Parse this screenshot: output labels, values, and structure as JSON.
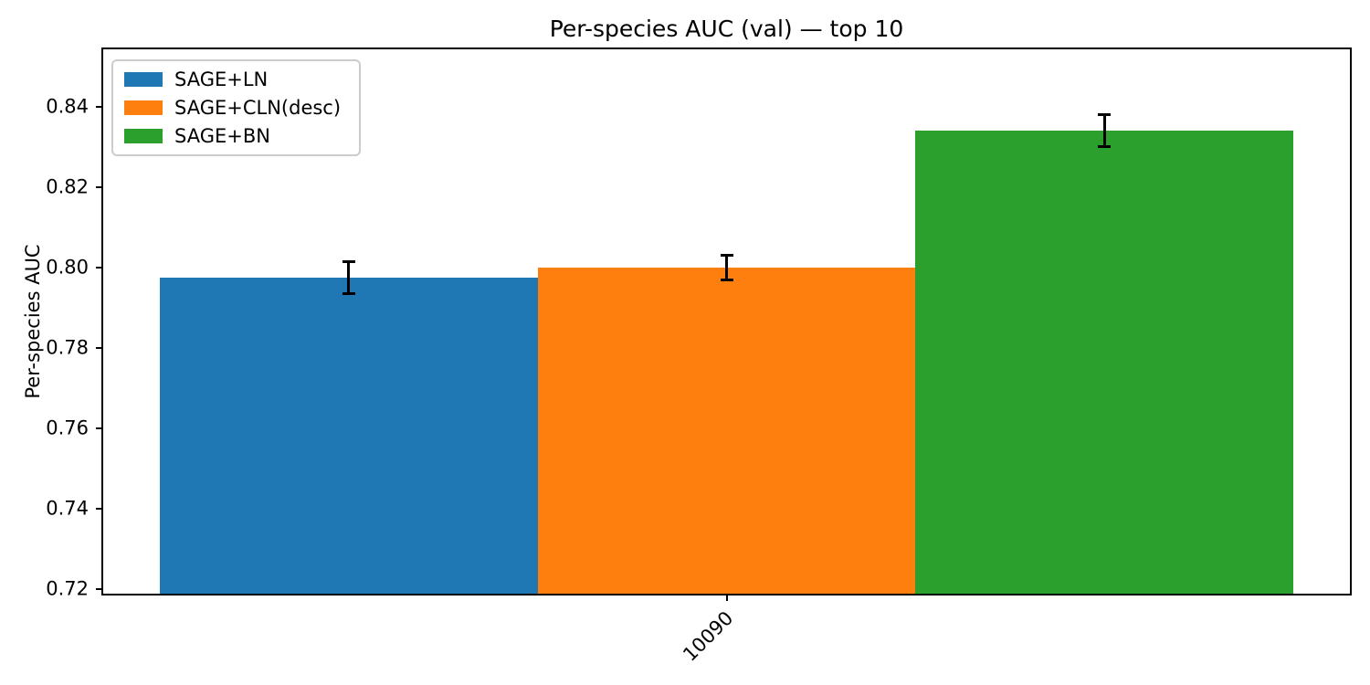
{
  "figure": {
    "background": "#ffffff",
    "spine_color": "#000000"
  },
  "chart_data": {
    "type": "bar",
    "title": "Per-species AUC (val) — top 10",
    "xlabel": "",
    "ylabel": "Per-species AUC",
    "categories": [
      "10090"
    ],
    "x_tick_rotation_deg": 45,
    "series": [
      {
        "name": "SAGE+LN",
        "color": "#1f77b4",
        "values": [
          0.7975
        ],
        "errors": [
          0.004
        ]
      },
      {
        "name": "SAGE+CLN(desc)",
        "color": "#ff7f0e",
        "values": [
          0.8
        ],
        "errors": [
          0.003
        ]
      },
      {
        "name": "SAGE+BN",
        "color": "#2ca02c",
        "values": [
          0.834
        ],
        "errors": [
          0.004
        ]
      }
    ],
    "ylim": [
      0.7189,
      0.8543
    ],
    "yticks": [
      0.72,
      0.74,
      0.76,
      0.78,
      0.8,
      0.82,
      0.84
    ],
    "ytick_decimals": 2,
    "error_bar_color": "#000000",
    "legend": {
      "position": "upper left",
      "entries": [
        "SAGE+LN",
        "SAGE+CLN(desc)",
        "SAGE+BN"
      ]
    },
    "grid": false
  }
}
